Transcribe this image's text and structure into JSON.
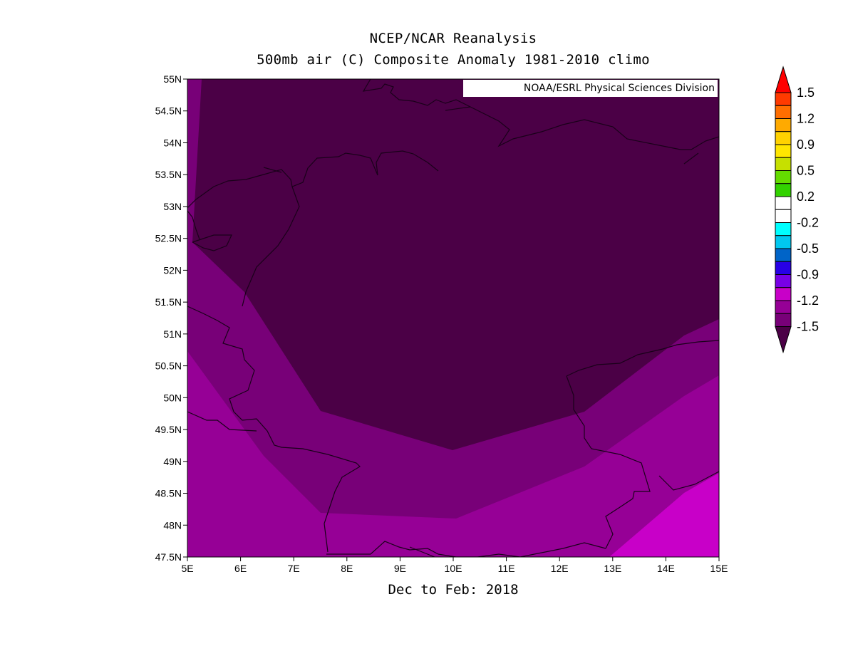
{
  "header": {
    "title": "NCEP/NCAR Reanalysis",
    "subtitle": "500mb air (C) Composite Anomaly 1981-2010 climo"
  },
  "footer": {
    "period": "Dec to Feb: 2018"
  },
  "credit": "NOAA/ESRL Physical Sciences Division",
  "chart_data": {
    "type": "heatmap",
    "variable": "500mb air temperature composite anomaly (C)",
    "x_ticks": [
      "5E",
      "6E",
      "7E",
      "8E",
      "9E",
      "10E",
      "11E",
      "12E",
      "13E",
      "14E",
      "15E"
    ],
    "y_ticks": [
      "47.5N",
      "48N",
      "48.5N",
      "49N",
      "49.5N",
      "50N",
      "50.5N",
      "51N",
      "51.5N",
      "52N",
      "52.5N",
      "53N",
      "53.5N",
      "54N",
      "54.5N",
      "55N"
    ],
    "xlim": [
      5,
      15
    ],
    "ylim": [
      47.5,
      55
    ],
    "colorbar": {
      "labels": [
        "1.5",
        "1.2",
        "0.9",
        "0.5",
        "0.2",
        "-0.2",
        "-0.5",
        "-0.9",
        "-1.2",
        "-1.5"
      ],
      "colors": [
        "#ff0000",
        "#ff3a00",
        "#ff6e00",
        "#ffaa00",
        "#ffd200",
        "#ffe600",
        "#c6e000",
        "#64dc00",
        "#32d200",
        "#ffffff",
        "#ffffff",
        "#00ffff",
        "#00c8f0",
        "#0064c8",
        "#2800e6",
        "#7800e6",
        "#c800c8",
        "#960096",
        "#780078",
        "#4b0046"
      ],
      "arrow_low": "#4b0046"
    },
    "contour_levels": [
      {
        "range": "< -1.5",
        "color": "#4b0046"
      },
      {
        "range": "-1.5 to -1.35",
        "color": "#780078"
      },
      {
        "range": "-1.35 to -1.2",
        "color": "#960096"
      },
      {
        "range": "-1.2 to -1.05",
        "color": "#c800c8"
      }
    ]
  }
}
